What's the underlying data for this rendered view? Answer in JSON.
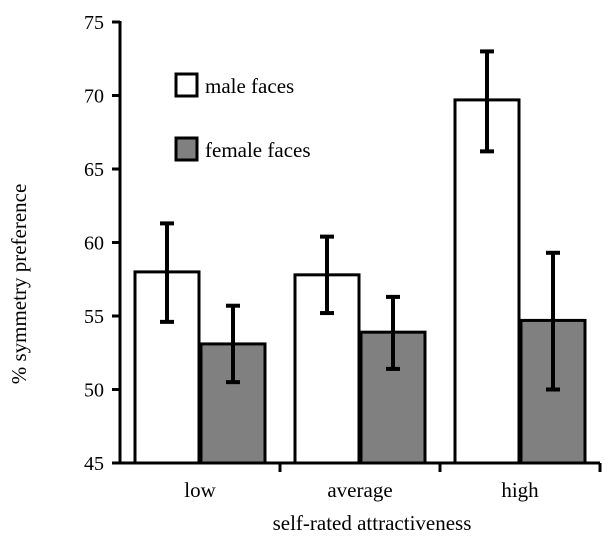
{
  "chart_data": {
    "type": "bar",
    "title": "",
    "xlabel": "self-rated attractiveness",
    "ylabel": "% symmetry preference",
    "categories": [
      "low",
      "average",
      "high"
    ],
    "ylim": [
      45,
      75
    ],
    "yticks": [
      "45",
      "50",
      "55",
      "60",
      "65",
      "70",
      "75"
    ],
    "series": [
      {
        "name": "male faces",
        "color": "#ffffff",
        "values": [
          58.0,
          57.8,
          69.7
        ],
        "error_low": [
          54.6,
          55.2,
          66.2
        ],
        "error_high": [
          61.3,
          60.4,
          73.0
        ]
      },
      {
        "name": "female faces",
        "color": "#808080",
        "values": [
          53.1,
          53.9,
          54.7
        ],
        "error_low": [
          50.5,
          51.4,
          50.0
        ],
        "error_high": [
          55.7,
          56.3,
          59.3
        ]
      }
    ],
    "legend_position": "top-left",
    "grid": false
  }
}
